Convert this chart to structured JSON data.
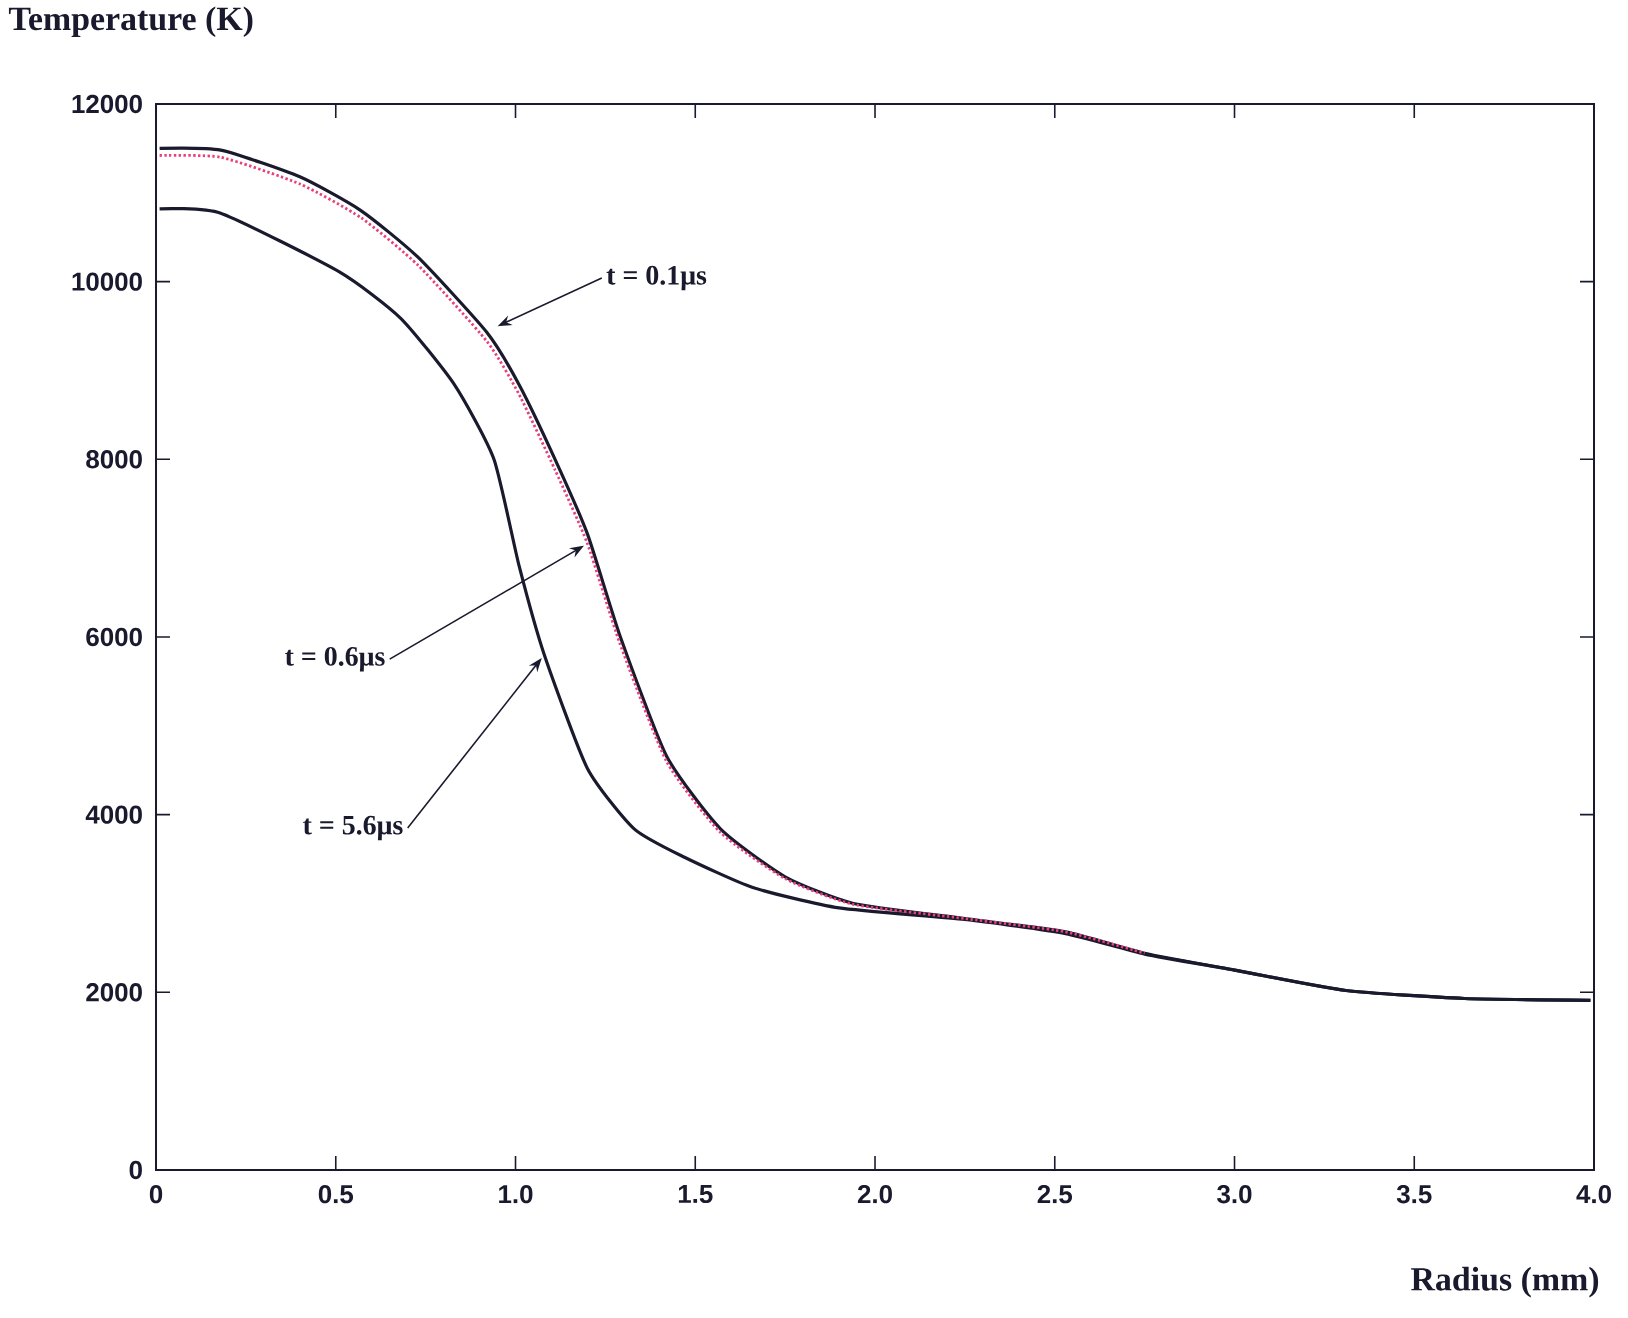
{
  "chart_data": {
    "type": "line",
    "xlabel": "Radius (mm)",
    "ylabel": "Temperature (K)",
    "xlim": [
      0,
      4
    ],
    "ylim": [
      0,
      12000
    ],
    "xticks": [
      0,
      0.5,
      {
        "value": 1,
        "label": "1.0"
      },
      1.5,
      {
        "value": 2,
        "label": "2.0"
      },
      2.5,
      {
        "value": 3,
        "label": "3.0"
      },
      3.5,
      {
        "value": 4,
        "label": "4.0"
      }
    ],
    "yticks": [
      0,
      2000,
      4000,
      6000,
      8000,
      10000,
      12000
    ],
    "grid": false,
    "series": [
      {
        "color": "#1a1a2e",
        "line_style": "solid",
        "x": [
          0.01,
          0.18,
          0.4,
          0.57,
          0.73,
          0.92,
          1.01,
          1.11,
          1.2,
          1.29,
          1.42,
          1.57,
          1.75,
          1.94,
          2.25,
          2.53,
          2.75,
          3.0,
          3.31,
          3.64,
          3.99
        ],
        "values": [
          11500,
          11480,
          11180,
          10800,
          10270,
          9430,
          8840,
          8000,
          7160,
          6020,
          4660,
          3840,
          3300,
          3000,
          2830,
          2680,
          2440,
          2250,
          2020,
          1930,
          1910
        ]
      },
      {
        "color": "#e8407a",
        "line_style": "dotted",
        "x": [
          0.01,
          0.18,
          0.4,
          0.57,
          0.73,
          0.92,
          1.01,
          1.11,
          1.2,
          1.29,
          1.42,
          1.57,
          1.75,
          1.94,
          2.25,
          2.53,
          2.75
        ],
        "values": [
          11420,
          11400,
          11100,
          10720,
          10180,
          9330,
          8730,
          7880,
          7050,
          5930,
          4600,
          3800,
          3280,
          2990,
          2830,
          2680,
          2440
        ]
      },
      {
        "color": "#1a1a2e",
        "line_style": "solid",
        "x": [
          0.01,
          0.18,
          0.51,
          0.68,
          0.83,
          0.94,
          1.01,
          1.08,
          1.2,
          1.33,
          1.47,
          1.66,
          1.9,
          2.25,
          2.53,
          2.75,
          3.0,
          3.31,
          3.64,
          3.99
        ],
        "values": [
          10820,
          10770,
          10110,
          9590,
          8840,
          8000,
          6800,
          5800,
          4520,
          3840,
          3520,
          3180,
          2950,
          2820,
          2660,
          2430,
          2250,
          2020,
          1930,
          1910
        ]
      }
    ],
    "annotations": [
      {
        "text": "t = 0.1μs",
        "x": 0.94,
        "y": 9480
      },
      {
        "text": "t = 0.6μs",
        "x": 1.2,
        "y": 7050
      },
      {
        "text": "t = 5.6μs",
        "x": 1.08,
        "y": 5800
      }
    ]
  }
}
